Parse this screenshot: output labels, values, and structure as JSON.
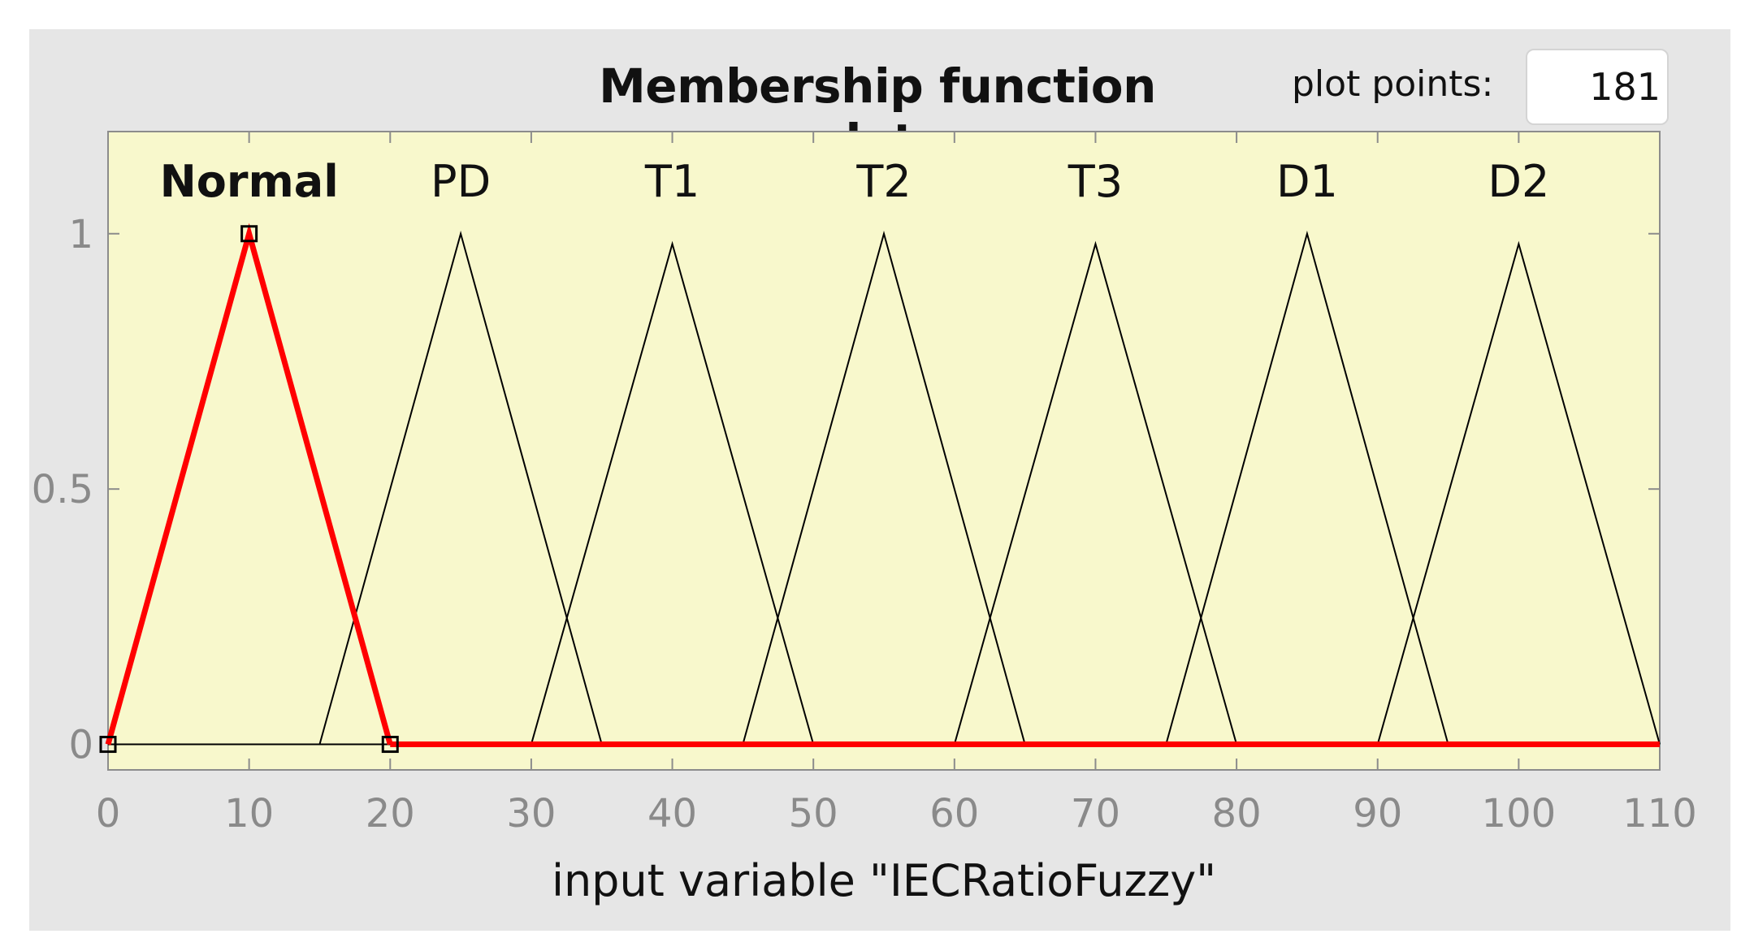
{
  "header": {
    "title": "Membership function plots",
    "plot_points_label": "plot points:",
    "plot_points_value": "181"
  },
  "colors": {
    "panel_background": "#e6e6e6",
    "plot_background": "#f8f8cc",
    "selected_mf": "#ff0000",
    "unselected_mf": "#000000"
  },
  "chart_data": {
    "type": "line",
    "title": "Membership function plots",
    "xlabel": "input variable \"IECRatioFuzzy\"",
    "ylabel": "",
    "xlim": [
      0,
      110
    ],
    "ylim": [
      -0.05,
      1.2
    ],
    "x_ticks": [
      "0",
      "10",
      "20",
      "30",
      "40",
      "50",
      "60",
      "70",
      "80",
      "90",
      "100",
      "110"
    ],
    "y_ticks": [
      "0",
      "0.5",
      "1"
    ],
    "y_tick_values": [
      0,
      0.5,
      1
    ],
    "selected_series": "Normal",
    "series": [
      {
        "name": "Normal",
        "params": [
          0,
          10,
          20
        ],
        "peak": 1
      },
      {
        "name": "PD",
        "params": [
          15,
          25,
          35
        ],
        "peak": 1
      },
      {
        "name": "T1",
        "params": [
          30,
          40,
          50
        ],
        "peak": 0.98
      },
      {
        "name": "T2",
        "params": [
          45,
          55,
          65
        ],
        "peak": 1
      },
      {
        "name": "T3",
        "params": [
          60,
          70,
          80
        ],
        "peak": 0.98
      },
      {
        "name": "D1",
        "params": [
          75,
          85,
          95
        ],
        "peak": 1
      },
      {
        "name": "D2",
        "params": [
          90,
          100,
          110
        ],
        "peak": 0.98
      }
    ]
  }
}
